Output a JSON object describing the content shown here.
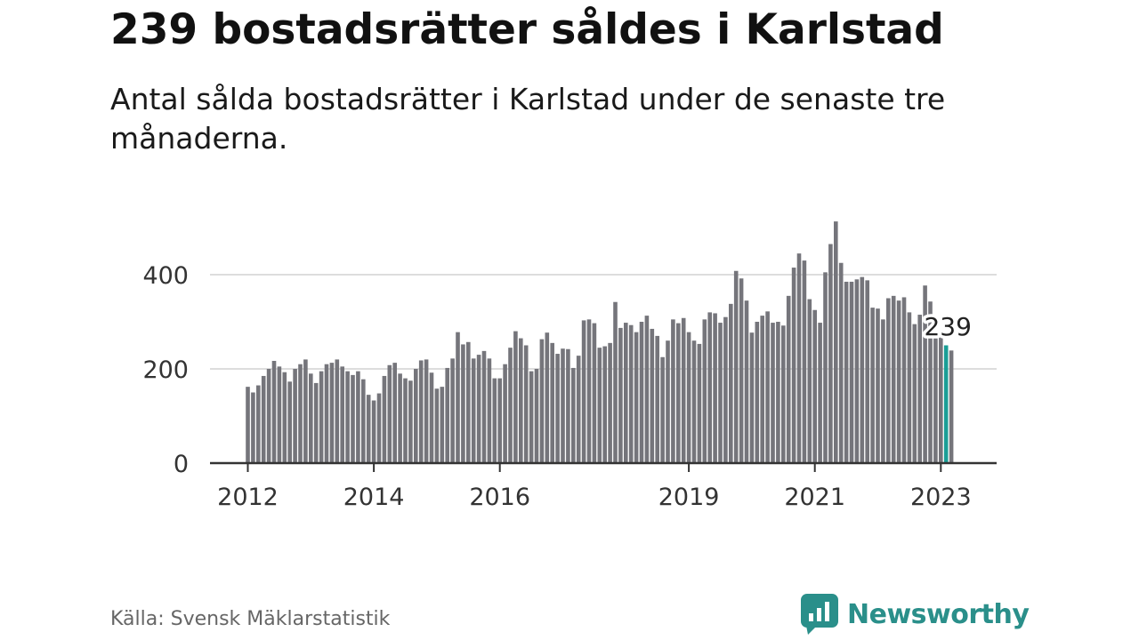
{
  "header": {
    "title": "239 bostadsrätter såldes i Karlstad",
    "subtitle": "Antal sålda bostadsrätter i Karlstad under de senaste tre månaderna."
  },
  "footer": {
    "source": "Källa: Svensk Mäklarstatistik",
    "brand": "Newsworthy"
  },
  "colors": {
    "bar": "#75757b",
    "highlight": "#1a9e96",
    "grid": "#dddddd",
    "axis": "#333333",
    "brand": "#2a8f8a"
  },
  "chart_data": {
    "type": "bar",
    "title": "239 bostadsrätter såldes i Karlstad",
    "subtitle": "Antal sålda bostadsrätter i Karlstad under de senaste tre månaderna.",
    "xlabel": "",
    "ylabel": "",
    "ylim": [
      0,
      520
    ],
    "yticks": [
      0,
      200,
      400
    ],
    "grid": true,
    "x_start": "2012-01",
    "x_end": "2023-02",
    "xticks": [
      {
        "label": "2012",
        "date": "2012-01"
      },
      {
        "label": "2014",
        "date": "2014-01"
      },
      {
        "label": "2016",
        "date": "2016-01"
      },
      {
        "label": "2019",
        "date": "2019-01"
      },
      {
        "label": "2021",
        "date": "2021-01"
      },
      {
        "label": "2023",
        "date": "2023-01"
      }
    ],
    "callout": {
      "date": "2023-02",
      "label": "239"
    },
    "highlight": "2023-02",
    "series": [
      {
        "values": [
          162,
          150,
          165,
          185,
          200,
          217,
          205,
          193,
          173,
          200,
          210,
          220,
          190,
          170,
          195,
          210,
          213,
          220,
          205,
          195,
          187,
          195,
          178,
          145,
          133,
          148,
          185,
          208,
          213,
          190,
          180,
          175,
          200,
          218,
          220,
          192,
          158,
          162,
          202,
          222,
          278,
          252,
          257,
          222,
          230,
          238,
          222,
          180,
          180,
          210,
          245,
          280,
          265,
          250,
          195,
          200,
          263,
          277,
          255,
          232,
          243,
          242,
          202,
          228,
          303,
          305,
          297,
          245,
          248,
          255,
          342,
          287,
          298,
          293,
          278,
          300,
          313,
          285,
          270,
          225,
          260,
          305,
          297,
          308,
          278,
          260,
          253,
          305,
          320,
          318,
          298,
          310,
          338,
          408,
          392,
          345,
          277,
          300,
          313,
          322,
          298,
          300,
          292,
          355,
          415,
          445,
          430,
          348,
          325,
          298,
          405,
          465,
          513,
          425,
          385,
          385,
          390,
          395,
          388,
          330,
          328,
          305,
          350,
          355,
          345,
          352,
          320,
          295,
          315,
          377,
          343,
          282,
          268,
          250,
          239
        ]
      }
    ]
  }
}
